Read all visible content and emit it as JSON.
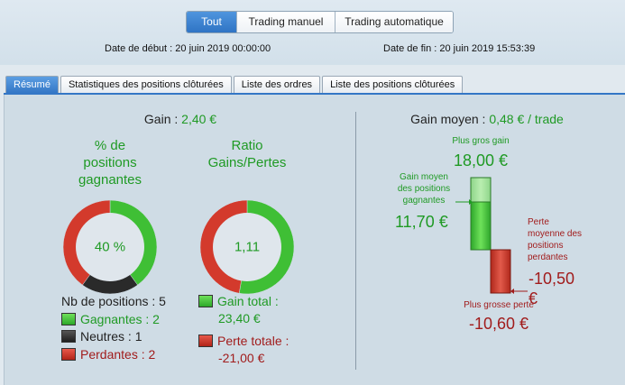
{
  "header": {
    "segments": [
      {
        "label": "Tout",
        "active": true
      },
      {
        "label": "Trading manuel",
        "active": false
      },
      {
        "label": "Trading automatique",
        "active": false
      }
    ],
    "start_date_label": "Date de début :",
    "start_date_value": "20 juin 2019 00:00:00",
    "end_date_label": "Date de fin :",
    "end_date_value": "20 juin 2019 15:53:39"
  },
  "tabs": [
    {
      "label": "Résumé",
      "active": true
    },
    {
      "label": "Statistiques des positions clôturées",
      "active": false
    },
    {
      "label": "Liste des ordres",
      "active": false
    },
    {
      "label": "Liste des positions clôturées",
      "active": false
    }
  ],
  "summary": {
    "gain_label": "Gain :",
    "gain_value": "2,40 €",
    "pct_title_lines": [
      "% de",
      "positions",
      "gagnantes"
    ],
    "pct_value": "40 %",
    "pct_breakdown": {
      "winning": 2,
      "neutral": 1,
      "losing": 2
    },
    "ratio_title_lines": [
      "Ratio",
      "Gains/Pertes"
    ],
    "ratio_value": "1,11",
    "ratio_breakdown": {
      "gains": 23.4,
      "losses": 21.0
    },
    "nb_positions_label": "Nb de positions : 5",
    "winning_label": "Gagnantes : 2",
    "neutral_label": "Neutres : 1",
    "losing_label": "Perdantes : 2",
    "total_gain_label": "Gain total :",
    "total_gain_value": "23,40 €",
    "total_loss_label": "Perte totale :",
    "total_loss_value": "-21,00 €"
  },
  "average": {
    "title_label": "Gain moyen :",
    "title_value": "0,48 € / trade",
    "best_gain_label": "Plus gros gain",
    "best_gain_value": "18,00 €",
    "avg_win_lines": [
      "Gain moyen",
      "des positions",
      "gagnantes"
    ],
    "avg_win_value": "11,70 €",
    "avg_loss_lines": [
      "Perte",
      "moyenne des",
      "positions",
      "perdantes"
    ],
    "avg_loss_value": "-10,50 €",
    "worst_loss_label": "Plus grosse perte",
    "worst_loss_value": "-10,60 €"
  },
  "colors": {
    "green": "#1f9a24",
    "red": "#a11c1c",
    "accent": "#3477c6"
  }
}
